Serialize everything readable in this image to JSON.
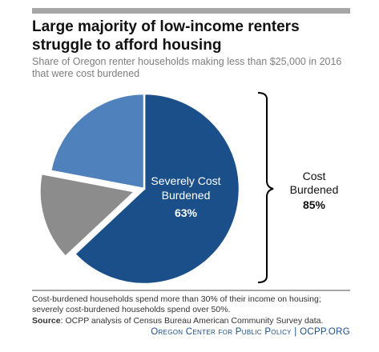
{
  "header": {
    "title_line1": "Large majority of low-income renters",
    "title_line2": "struggle to afford housing",
    "subtitle_line1": "Share of Oregon renter households making less than $25,000 in 2016",
    "subtitle_line2": "that were cost burdened"
  },
  "chart_data": {
    "type": "pie",
    "slices": [
      {
        "label": "Severely Cost Burdened",
        "value": 63,
        "value_label": "63%",
        "color": "#1a4f8a",
        "exploded": false
      },
      {
        "label": "",
        "value": 15,
        "value_label": "",
        "color": "#8c8c8c",
        "exploded": true
      },
      {
        "label": "",
        "value": 22,
        "value_label": "",
        "color": "#4f81bd",
        "exploded": false
      }
    ],
    "bracket_label_line1": "Cost",
    "bracket_label_line2": "Burdened",
    "bracket_value": "85%"
  },
  "notes": {
    "line1": "Cost-burdened households spend more than 30% of their income on housing;",
    "line2": "severely cost-burdened households spend over 50%.",
    "source_label": "Source",
    "source_text": ": OCPP analysis of Census Bureau American Community  Survey data."
  },
  "footer": {
    "org_name": "Oregon Center for Public Policy",
    "separator": " | ",
    "site": "OCPP.ORG"
  }
}
